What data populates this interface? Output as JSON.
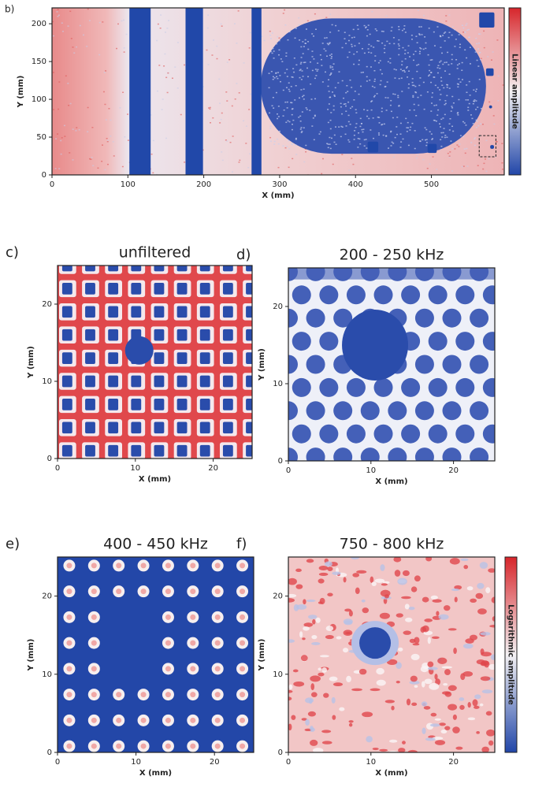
{
  "chart_data": [
    {
      "type": "heatmap",
      "panel_label": "b)",
      "xlabel": "X (mm)",
      "ylabel": "Y (mm)",
      "xlim": [
        0,
        596
      ],
      "ylim": [
        0,
        221
      ],
      "xticks": [
        0,
        100,
        200,
        300,
        400,
        500
      ],
      "yticks": [
        0,
        50,
        100,
        150,
        200
      ],
      "colorbar_label": "Linear amplitude"
    },
    {
      "type": "heatmap",
      "panel_label": "c)",
      "title": "unfiltered",
      "xlabel": "X (mm)",
      "ylabel": "Y (mm)",
      "xlim": [
        0,
        25
      ],
      "ylim": [
        0,
        25
      ],
      "xticks": [
        0,
        10,
        20
      ],
      "yticks": [
        0,
        10,
        20
      ]
    },
    {
      "type": "heatmap",
      "panel_label": "d)",
      "title": "200 - 250 kHz",
      "xlabel": "X (mm)",
      "ylabel": "Y (mm)",
      "xlim": [
        0,
        25
      ],
      "ylim": [
        0,
        25
      ],
      "xticks": [
        0,
        10,
        20
      ],
      "yticks": [
        0,
        10,
        20
      ]
    },
    {
      "type": "heatmap",
      "panel_label": "e)",
      "title": "400 - 450 kHz",
      "xlabel": "X (mm)",
      "ylabel": "Y (mm)",
      "xlim": [
        0,
        25
      ],
      "ylim": [
        0,
        25
      ],
      "xticks": [
        0,
        10,
        20
      ],
      "yticks": [
        0,
        10,
        20
      ]
    },
    {
      "type": "heatmap",
      "panel_label": "f)",
      "title": "750 - 800 kHz",
      "xlabel": "X (mm)",
      "ylabel": "Y (mm)",
      "xlim": [
        0,
        25
      ],
      "ylim": [
        0,
        25
      ],
      "xticks": [
        0,
        10,
        20
      ],
      "yticks": [
        0,
        10,
        20
      ],
      "colorbar_label": "Logarithmic amplitude"
    }
  ]
}
